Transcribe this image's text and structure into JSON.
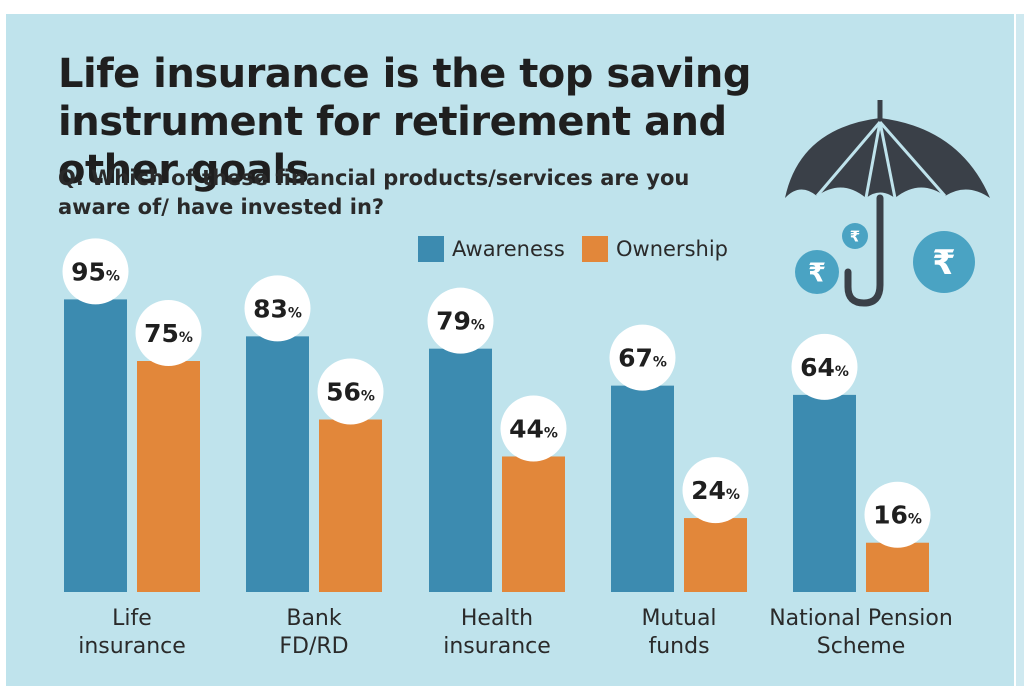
{
  "chart_data": {
    "type": "bar",
    "title": "Life insurance is the top saving instrument for retirement and other goals",
    "subtitle": "Q. Which of these financial products/services are you aware of/ have invested in?",
    "categories": [
      [
        "Life",
        "insurance"
      ],
      [
        "Bank",
        "FD/RD"
      ],
      [
        "Health",
        "insurance"
      ],
      [
        "Mutual",
        "funds"
      ],
      [
        "National Pension",
        "Scheme"
      ]
    ],
    "series": [
      {
        "name": "Awareness",
        "values": [
          95,
          83,
          79,
          67,
          64
        ],
        "color": "#3c8bb0"
      },
      {
        "name": "Ownership",
        "values": [
          75,
          56,
          44,
          24,
          16
        ],
        "color": "#e2873a"
      }
    ],
    "value_suffix": "%",
    "ylim": [
      0,
      100
    ],
    "grid": false,
    "legend_position": "top-center",
    "decorations": {
      "icon": "umbrella-icon",
      "coin_icon": "rupee-coin-icon",
      "coin_symbol": "₹",
      "colors": {
        "umbrella": "#3a4048",
        "coin": "#4aa3c3",
        "label_circle": "#ffffff"
      }
    }
  }
}
